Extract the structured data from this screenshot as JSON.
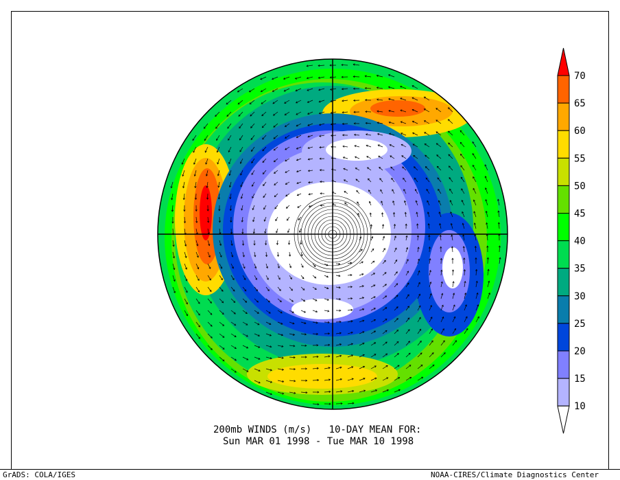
{
  "title": {
    "line1": "200mb WINDS (m/s)   10-DAY MEAN FOR:",
    "line2": "Sun MAR 01 1998 - Tue MAR 10 1998"
  },
  "footer": {
    "left": "GrADS: COLA/IGES",
    "right": "NOAA-CIRES/Climate Diagnostics Center"
  },
  "map": {
    "projection": "north polar stereographic",
    "field": "200mb wind speed with wind vectors"
  },
  "colorbar": {
    "labels": [
      "10",
      "15",
      "20",
      "25",
      "30",
      "35",
      "40",
      "45",
      "50",
      "55",
      "60",
      "65",
      "70"
    ],
    "colors": [
      "#ffffff",
      "#b4b4ff",
      "#8080ff",
      "#0046dc",
      "#0a7dac",
      "#00aa80",
      "#00dc50",
      "#00ff00",
      "#64e000",
      "#c8e000",
      "#ffdc00",
      "#ffa800",
      "#ff6400",
      "#ff0000"
    ]
  }
}
